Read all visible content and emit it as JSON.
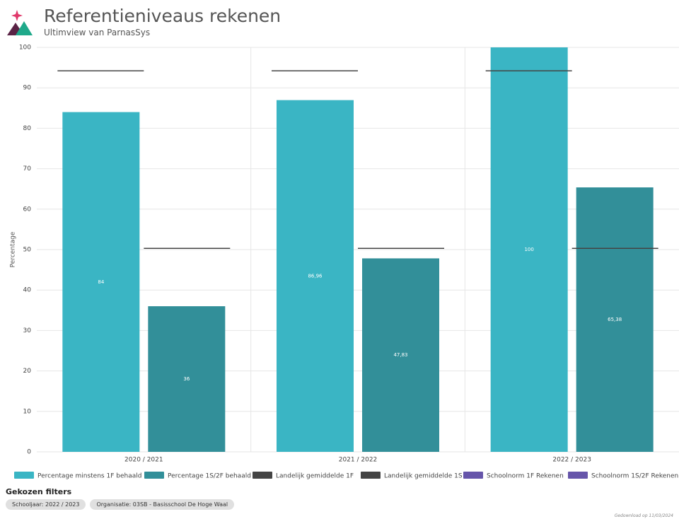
{
  "header": {
    "title": "Referentieniveaus rekenen",
    "subtitle": "Ultimview van ParnasSys"
  },
  "chart_data": {
    "type": "bar",
    "y_label": "Percentage",
    "categories": [
      "2020 / 2021",
      "2021 / 2022",
      "2022 / 2023"
    ],
    "ylim": [
      0,
      100
    ],
    "yticks": [
      0,
      10,
      20,
      30,
      40,
      50,
      60,
      70,
      80,
      90,
      100
    ],
    "grid": true,
    "series": [
      {
        "name": "Percentage minstens 1F behaald",
        "color": "#3ab5c4",
        "kind": "bar",
        "values": [
          84,
          86.96,
          100
        ],
        "value_labels": [
          "84",
          "86,96",
          "100"
        ]
      },
      {
        "name": "Percentage 1S/2F behaald",
        "color": "#328f99",
        "kind": "bar",
        "values": [
          36,
          47.83,
          65.38
        ],
        "value_labels": [
          "36",
          "47,83",
          "65,38"
        ]
      },
      {
        "name": "Landelijk gemiddelde 1F",
        "color": "#444444",
        "kind": "line",
        "slot": 0,
        "values": [
          94.2,
          94.2,
          94.2
        ]
      },
      {
        "name": "Landelijk gemiddelde 1S",
        "color": "#444444",
        "kind": "line",
        "slot": 1,
        "values": [
          50.3,
          50.3,
          50.3
        ]
      },
      {
        "name": "Schoolnorm 1F Rekenen",
        "color": "#6655aa",
        "kind": "line",
        "slot": 0,
        "values": [
          null,
          null,
          null
        ]
      },
      {
        "name": "Schoolnorm 1S/2F Rekenen",
        "color": "#6655aa",
        "kind": "line",
        "slot": 1,
        "values": [
          null,
          null,
          null
        ]
      }
    ]
  },
  "filters": {
    "title": "Gekozen filters",
    "items": [
      "Schooljaar: 2022 / 2023",
      "Organisatie: 03SB - Basisschool De Hoge Waal"
    ]
  },
  "footer": "Gedownload op 11/03/2024"
}
